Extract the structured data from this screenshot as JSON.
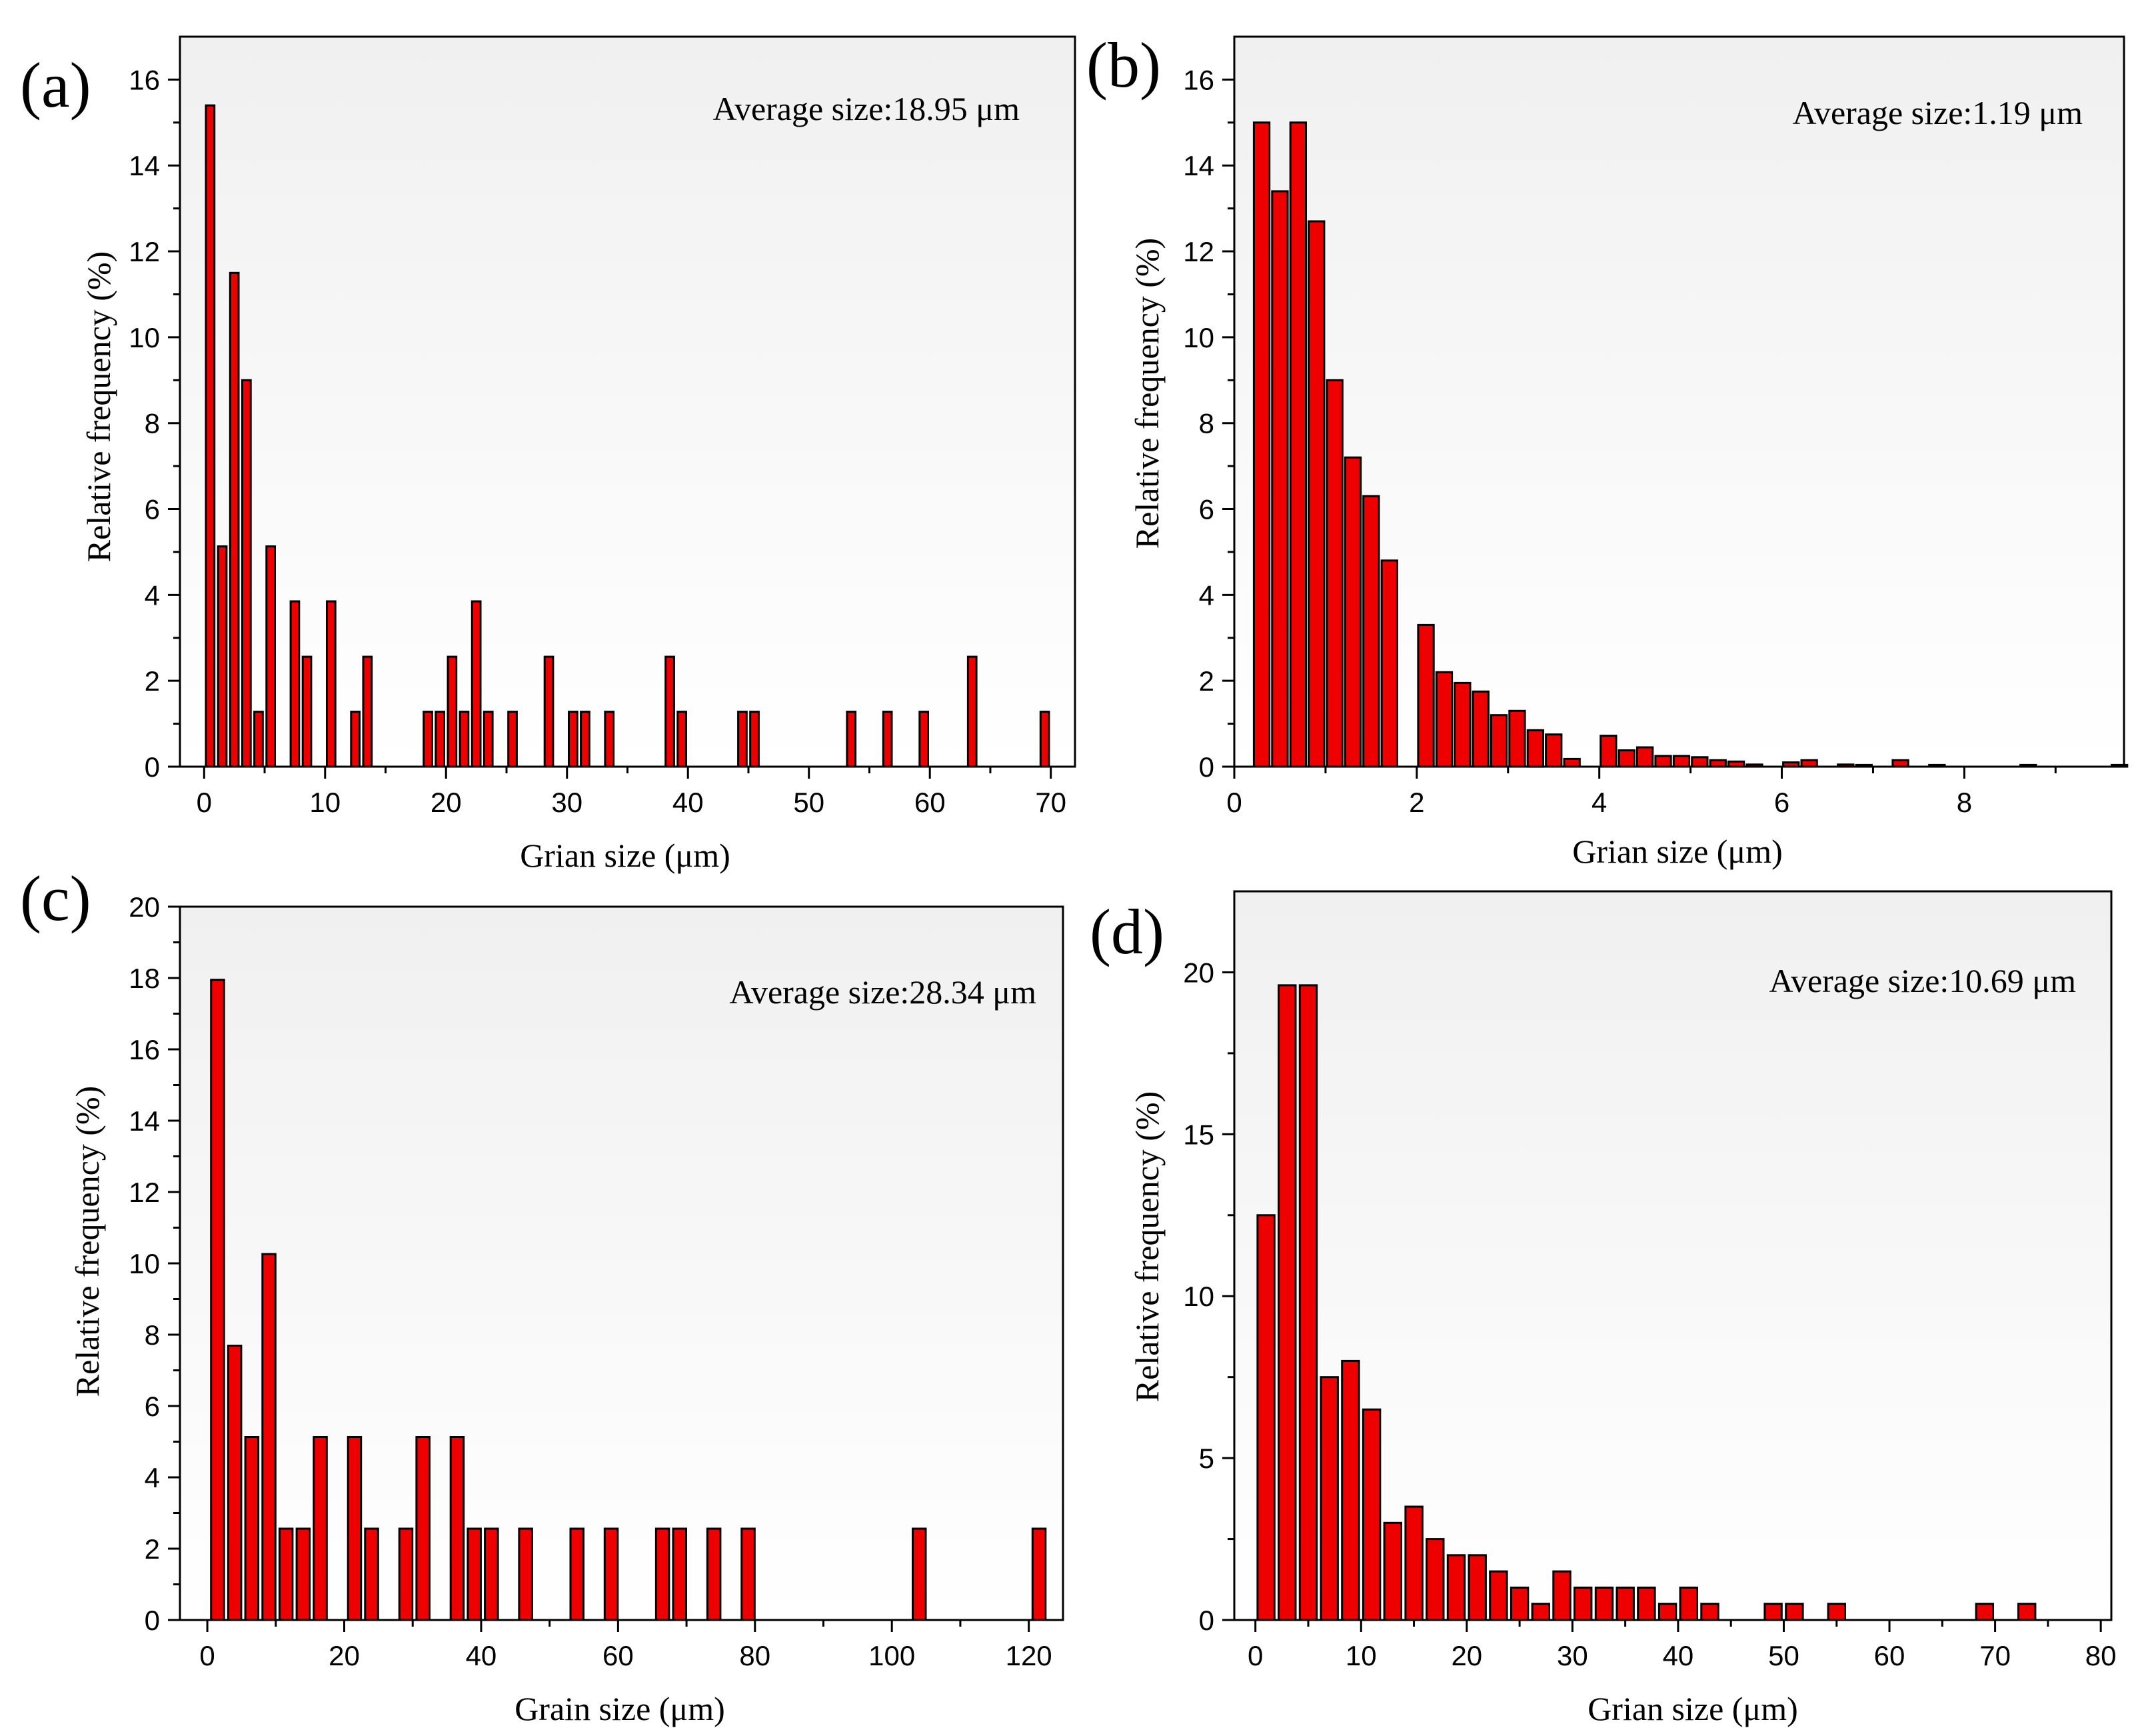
{
  "figure": {
    "bar_color": "#ee0000",
    "bar_edge": "#000000",
    "plot_bg_top": "#f0f0f0",
    "plot_bg_bottom": "#ffffff"
  },
  "chart_data": [
    {
      "panel": "(a)",
      "type": "bar",
      "annotation": "Average size:18.95 μm",
      "xlabel": "Grian size (μm)",
      "ylabel": "Relative frequency (%)",
      "xlim": [
        -2,
        72
      ],
      "ylim": [
        0,
        17
      ],
      "xticks": [
        0,
        10,
        20,
        30,
        40,
        50,
        60,
        70
      ],
      "yticks": [
        0,
        2,
        4,
        6,
        8,
        10,
        12,
        14,
        16
      ],
      "bar_width": 0.7,
      "x": [
        0.5,
        1.5,
        2.5,
        3.5,
        4.5,
        5.5,
        7.5,
        8.5,
        10.5,
        12.5,
        13.5,
        18.5,
        19.5,
        20.5,
        21.5,
        22.5,
        23.5,
        25.5,
        28.5,
        30.5,
        31.5,
        33.5,
        38.5,
        39.5,
        44.5,
        45.5,
        53.5,
        56.5,
        59.5,
        63.5,
        69.5
      ],
      "values": [
        15.4,
        5.13,
        11.5,
        9.0,
        1.28,
        5.13,
        3.85,
        2.56,
        3.85,
        1.28,
        2.56,
        1.28,
        1.28,
        2.56,
        1.28,
        3.85,
        1.28,
        1.28,
        2.56,
        1.28,
        1.28,
        1.28,
        2.56,
        1.28,
        1.28,
        1.28,
        1.28,
        1.28,
        1.28,
        2.56,
        1.28
      ]
    },
    {
      "panel": "(b)",
      "type": "bar",
      "annotation": "Average size:1.19 μm",
      "xlabel": "Grian size (μm)",
      "ylabel": "Relative frequency (%)",
      "xlim": [
        0,
        9.75
      ],
      "ylim": [
        0,
        17
      ],
      "xticks": [
        0,
        2,
        4,
        6,
        8
      ],
      "yticks": [
        0,
        2,
        4,
        6,
        8,
        10,
        12,
        14,
        16
      ],
      "bar_width": 0.17,
      "x": [
        0.3,
        0.5,
        0.7,
        0.9,
        1.1,
        1.3,
        1.5,
        1.7,
        2.1,
        2.3,
        2.5,
        2.7,
        2.9,
        3.1,
        3.3,
        3.5,
        3.7,
        4.1,
        4.3,
        4.5,
        4.7,
        4.9,
        5.1,
        5.3,
        5.5,
        5.7,
        6.1,
        6.3,
        6.7,
        6.9,
        7.3,
        7.7,
        8.7,
        9.7
      ],
      "values": [
        15.0,
        13.4,
        15.0,
        12.7,
        9.0,
        7.2,
        6.3,
        4.8,
        3.3,
        2.2,
        1.95,
        1.75,
        1.2,
        1.3,
        0.85,
        0.75,
        0.18,
        0.72,
        0.38,
        0.45,
        0.25,
        0.25,
        0.22,
        0.15,
        0.12,
        0.05,
        0.1,
        0.15,
        0.05,
        0.04,
        0.15,
        0.04,
        0.04,
        0.04
      ]
    },
    {
      "panel": "(c)",
      "type": "bar",
      "annotation": "Average size:28.34 μm",
      "xlabel": "Grain size (μm)",
      "ylabel": "Relative frequency (%)",
      "xlim": [
        -4,
        125
      ],
      "ylim": [
        0,
        20
      ],
      "xticks": [
        0,
        20,
        40,
        60,
        80,
        100,
        120
      ],
      "yticks": [
        0,
        2,
        4,
        6,
        8,
        10,
        12,
        14,
        16,
        18,
        20
      ],
      "bar_width": 1.9,
      "x": [
        1.5,
        4,
        6.5,
        9,
        11.5,
        14,
        16.5,
        21.5,
        24,
        29,
        31.5,
        36.5,
        39,
        41.5,
        46.5,
        54,
        59,
        66.5,
        69,
        74,
        79,
        104,
        121.5
      ],
      "values": [
        17.95,
        7.69,
        5.13,
        10.26,
        2.56,
        2.56,
        5.13,
        5.13,
        2.56,
        2.56,
        5.13,
        5.13,
        2.56,
        2.56,
        2.56,
        2.56,
        2.56,
        2.56,
        2.56,
        2.56,
        2.56,
        2.56,
        2.56
      ]
    },
    {
      "panel": "(d)",
      "type": "bar",
      "annotation": "Average size:10.69 μm",
      "xlabel": "Grian size (μm)",
      "ylabel": "Relative frequency (%)",
      "xlim": [
        -2,
        81
      ],
      "ylim": [
        0,
        22.5
      ],
      "xticks": [
        0,
        10,
        20,
        30,
        40,
        50,
        60,
        70,
        80
      ],
      "yticks": [
        0,
        5,
        10,
        15,
        20
      ],
      "bar_width": 1.6,
      "x": [
        1,
        3,
        5,
        7,
        9,
        11,
        13,
        15,
        17,
        19,
        21,
        23,
        25,
        27,
        29,
        31,
        33,
        35,
        37,
        39,
        41,
        43,
        49,
        51,
        55,
        69,
        73
      ],
      "values": [
        12.5,
        19.6,
        19.6,
        7.5,
        8.0,
        6.5,
        3.0,
        3.5,
        2.5,
        2.0,
        2.0,
        1.5,
        1.0,
        0.5,
        1.5,
        1.0,
        1.0,
        1.0,
        1.0,
        0.5,
        1.0,
        0.5,
        0.5,
        0.5,
        0.5,
        0.5,
        0.5
      ]
    }
  ]
}
